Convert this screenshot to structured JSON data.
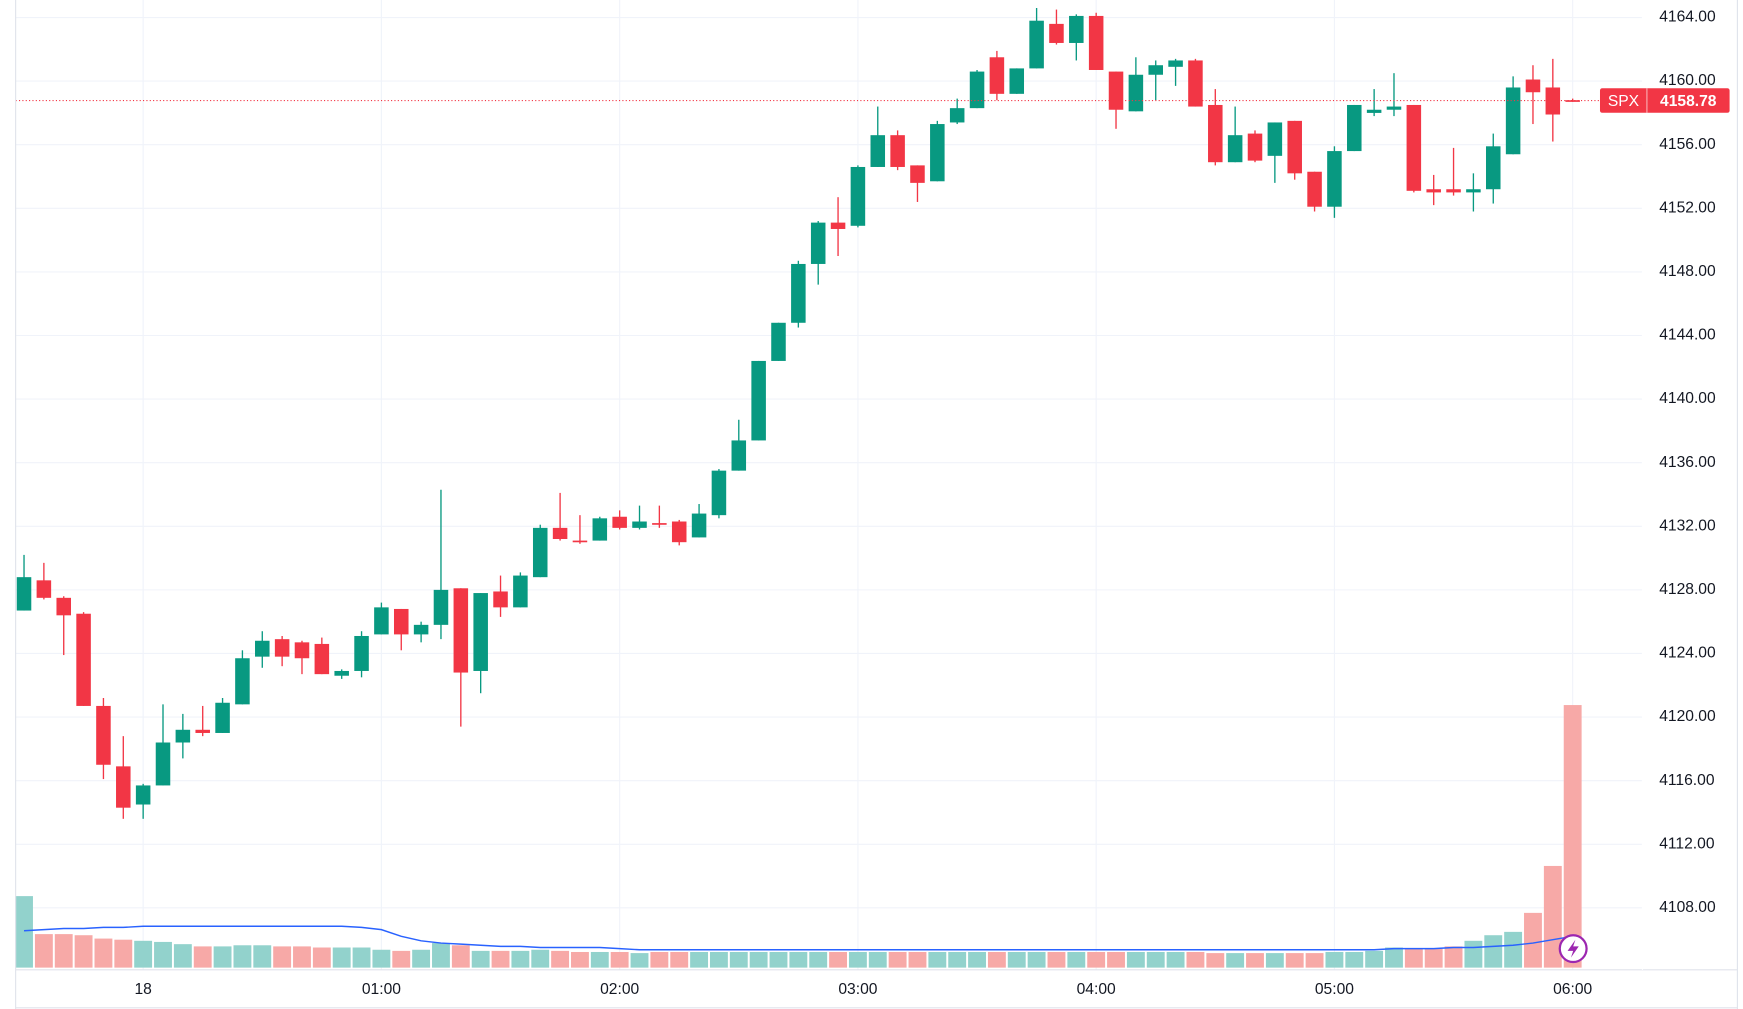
{
  "chart_data": {
    "type": "candlestick",
    "categories": [
      null,
      null,
      null,
      null,
      null,
      null,
      "18",
      null,
      null,
      null,
      null,
      null,
      null,
      null,
      null,
      null,
      null,
      null,
      "01:00",
      null,
      null,
      null,
      null,
      null,
      null,
      null,
      null,
      null,
      null,
      null,
      "02:00",
      null,
      null,
      null,
      null,
      null,
      null,
      null,
      null,
      null,
      null,
      null,
      "03:00",
      null,
      null,
      null,
      null,
      null,
      null,
      null,
      null,
      null,
      null,
      null,
      "04:00",
      null,
      null,
      null,
      null,
      null,
      null,
      null,
      null,
      null,
      null,
      null,
      "05:00",
      null,
      null,
      null,
      null,
      null,
      null,
      null,
      null,
      null,
      null,
      null,
      "06:00"
    ],
    "open": [
      4126.7,
      4128.6,
      4127.5,
      4126.5,
      4120.7,
      4116.9,
      4114.5,
      4115.7,
      4118.4,
      4119.2,
      4119.0,
      4120.8,
      4123.8,
      4124.9,
      4124.7,
      4124.6,
      4122.6,
      4122.9,
      4125.2,
      4126.8,
      4125.2,
      4125.8,
      4128.1,
      4122.9,
      4127.9,
      4126.9,
      4128.8,
      4131.9,
      4131.1,
      4131.1,
      4132.6,
      4131.9,
      4132.2,
      4132.3,
      4131.3,
      4132.7,
      4135.5,
      4137.4,
      4142.4,
      4144.8,
      4148.5,
      4151.1,
      4150.9,
      4154.6,
      4156.6,
      4154.7,
      4153.7,
      4157.4,
      4158.3,
      4161.5,
      4159.2,
      4160.8,
      4163.6,
      4162.4,
      4164.1,
      4160.6,
      4158.1,
      4160.4,
      4160.9,
      4161.3,
      4158.5,
      4154.9,
      4156.7,
      4155.3,
      4157.5,
      4154.3,
      4152.1,
      4155.6,
      4158.0,
      4158.2,
      4158.5,
      4153.2,
      4153.2,
      4153.0,
      4153.2,
      4155.4,
      4160.1,
      4159.6,
      4158.8
    ],
    "high": [
      4130.2,
      4129.7,
      4127.6,
      4126.6,
      4121.2,
      4118.8,
      4115.8,
      4120.8,
      4120.2,
      4120.7,
      4121.2,
      4124.2,
      4125.4,
      4125.1,
      4124.8,
      4125.0,
      4123.0,
      4125.4,
      4127.2,
      4126.8,
      4126.0,
      4134.3,
      4128.1,
      4127.8,
      4128.9,
      4129.1,
      4132.1,
      4134.1,
      4132.7,
      4132.6,
      4133.0,
      4133.3,
      4133.3,
      4132.4,
      4133.4,
      4135.6,
      4138.7,
      4142.4,
      4144.8,
      4148.7,
      4151.2,
      4152.7,
      4154.7,
      4158.4,
      4156.9,
      4154.7,
      4157.5,
      4158.9,
      4160.7,
      4161.9,
      4160.8,
      4164.6,
      4164.5,
      4164.2,
      4164.3,
      4160.6,
      4161.5,
      4161.3,
      4161.4,
      4161.4,
      4159.5,
      4158.4,
      4156.9,
      4157.4,
      4157.5,
      4154.3,
      4155.9,
      4158.5,
      4159.5,
      4160.5,
      4158.5,
      4154.1,
      4155.8,
      4154.2,
      4156.7,
      4160.3,
      4161.0,
      4161.4,
      4158.9
    ],
    "low": [
      4126.7,
      4127.4,
      4123.9,
      4120.7,
      4116.1,
      4113.6,
      4113.6,
      4115.7,
      4117.4,
      4118.8,
      4119.0,
      4120.8,
      4123.1,
      4123.2,
      4122.7,
      4122.7,
      4122.4,
      4122.5,
      4125.2,
      4124.2,
      4124.7,
      4124.9,
      4119.4,
      4121.5,
      4126.3,
      4126.9,
      4128.8,
      4131.1,
      4130.9,
      4131.1,
      4131.8,
      4131.8,
      4131.9,
      4130.8,
      4131.3,
      4132.5,
      4135.5,
      4137.4,
      4142.4,
      4144.5,
      4147.2,
      4149.0,
      4150.8,
      4154.6,
      4154.4,
      4152.4,
      4153.7,
      4157.3,
      4158.3,
      4158.8,
      4159.2,
      4160.8,
      4162.3,
      4161.3,
      4160.7,
      4157.0,
      4158.1,
      4158.8,
      4159.7,
      4158.4,
      4154.7,
      4154.9,
      4154.9,
      4153.6,
      4153.8,
      4151.8,
      4151.4,
      4155.6,
      4157.8,
      4157.8,
      4153.0,
      4152.2,
      4152.8,
      4151.8,
      4152.3,
      4155.4,
      4157.3,
      4156.2,
      4158.7
    ],
    "close": [
      4128.8,
      4127.5,
      4126.4,
      4120.7,
      4117.0,
      4114.3,
      4115.7,
      4118.4,
      4119.2,
      4119.0,
      4120.9,
      4123.7,
      4124.8,
      4123.8,
      4123.7,
      4122.7,
      4122.9,
      4125.1,
      4126.9,
      4125.2,
      4125.8,
      4128.0,
      4122.8,
      4127.8,
      4126.9,
      4128.9,
      4131.9,
      4131.2,
      4131.0,
      4132.5,
      4131.9,
      4132.3,
      4132.1,
      4131.0,
      4132.8,
      4135.5,
      4137.4,
      4142.4,
      4144.8,
      4148.5,
      4151.1,
      4150.7,
      4154.6,
      4156.6,
      4154.6,
      4153.6,
      4157.3,
      4158.3,
      4160.6,
      4159.2,
      4160.8,
      4163.8,
      4162.4,
      4164.1,
      4160.7,
      4158.2,
      4160.4,
      4161.0,
      4161.3,
      4158.4,
      4154.9,
      4156.6,
      4155.0,
      4157.4,
      4154.2,
      4152.1,
      4155.6,
      4158.5,
      4158.2,
      4158.4,
      4153.1,
      4153.0,
      4153.0,
      4153.2,
      4155.9,
      4159.6,
      4159.3,
      4157.9,
      4158.78
    ],
    "volume": [
      64,
      30,
      30,
      29,
      26,
      25,
      24,
      23,
      21,
      19,
      19,
      20,
      20,
      19,
      19,
      18,
      18,
      18,
      16,
      15,
      16,
      22,
      20,
      15,
      15,
      15,
      16,
      15,
      14,
      14,
      14,
      13,
      14,
      14,
      14,
      14,
      14,
      14,
      14,
      14,
      14,
      14,
      14,
      14,
      14,
      14,
      14,
      14,
      14,
      14,
      14,
      14,
      14,
      14,
      14,
      14,
      14,
      14,
      14,
      14,
      13,
      13,
      13,
      13,
      13,
      13,
      14,
      14,
      15,
      18,
      17,
      17,
      19,
      24,
      29,
      32,
      49,
      91,
      235
    ],
    "volume_ma": [
      33,
      34,
      35,
      35,
      36,
      36,
      37,
      37,
      37,
      37,
      37,
      37,
      37,
      37,
      37,
      37,
      37,
      36,
      34,
      28,
      24,
      22,
      21,
      20,
      19,
      19,
      18,
      18,
      18,
      18,
      17,
      16,
      16,
      16,
      16,
      16,
      16,
      16,
      16,
      16,
      16,
      16,
      16,
      16,
      16,
      16,
      16,
      16,
      16,
      16,
      16,
      16,
      16,
      16,
      16,
      16,
      16,
      16,
      16,
      16,
      16,
      16,
      16,
      16,
      16,
      16,
      16,
      16,
      16,
      17,
      17,
      17,
      18,
      18,
      19,
      20,
      22,
      25,
      28
    ],
    "up_color": "#089981",
    "down_color": "#f23645",
    "volume_up_color": "#92d2cc",
    "volume_down_color": "#f7a9a7",
    "volume_ma_color": "#2962ff",
    "ylim": [
      4104.1,
      4165.1
    ],
    "yticks": [
      {
        "value": 4108,
        "label": "4108.00"
      },
      {
        "value": 4112,
        "label": "4112.00"
      },
      {
        "value": 4116,
        "label": "4116.00"
      },
      {
        "value": 4120,
        "label": "4120.00"
      },
      {
        "value": 4124,
        "label": "4124.00"
      },
      {
        "value": 4128,
        "label": "4128.00"
      },
      {
        "value": 4132,
        "label": "4132.00"
      },
      {
        "value": 4136,
        "label": "4136.00"
      },
      {
        "value": 4140,
        "label": "4140.00"
      },
      {
        "value": 4144,
        "label": "4144.00"
      },
      {
        "value": 4148,
        "label": "4148.00"
      },
      {
        "value": 4152,
        "label": "4152.00"
      },
      {
        "value": 4156,
        "label": "4156.00"
      },
      {
        "value": 4160,
        "label": "4160.00"
      },
      {
        "value": 4164,
        "label": "4164.00"
      }
    ],
    "grid": true,
    "last_price": {
      "label": "SPX",
      "value": 4158.78
    }
  }
}
